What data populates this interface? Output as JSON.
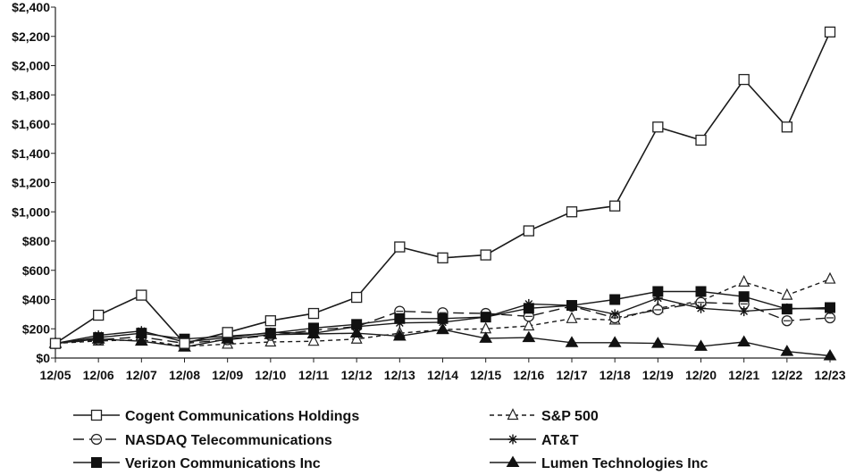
{
  "chart_data": {
    "type": "line",
    "x": [
      "12/05",
      "12/06",
      "12/07",
      "12/08",
      "12/09",
      "12/10",
      "12/11",
      "12/12",
      "12/13",
      "12/14",
      "12/15",
      "12/16",
      "12/17",
      "12/18",
      "12/19",
      "12/20",
      "12/21",
      "12/22",
      "12/23"
    ],
    "y_ticks": [
      "$0",
      "$200",
      "$400",
      "$600",
      "$800",
      "$1,000",
      "$1,200",
      "$1,400",
      "$1,600",
      "$1,800",
      "$2,000",
      "$2,200",
      "$2,400"
    ],
    "ylim": [
      0,
      2400
    ],
    "grid": false,
    "legend_position": "bottom",
    "series": [
      {
        "name": "Cogent Communications Holdings",
        "marker": "open-square",
        "line": "solid",
        "values": [
          100,
          293,
          430,
          100,
          175,
          255,
          305,
          415,
          760,
          685,
          705,
          870,
          1000,
          1040,
          1580,
          1490,
          1905,
          1580,
          2230
        ]
      },
      {
        "name": "S&P 500",
        "marker": "open-triangle",
        "line": "dashed",
        "values": [
          100,
          117,
          125,
          80,
          95,
          110,
          115,
          130,
          170,
          195,
          200,
          220,
          270,
          260,
          340,
          390,
          520,
          430,
          540
        ]
      },
      {
        "name": "NASDAQ Telecommunications",
        "marker": "open-circle",
        "line": "long-dash",
        "values": [
          100,
          125,
          145,
          100,
          125,
          155,
          190,
          215,
          320,
          310,
          305,
          285,
          355,
          275,
          330,
          380,
          370,
          255,
          275
        ]
      },
      {
        "name": "AT&T",
        "marker": "star",
        "line": "solid",
        "values": [
          100,
          155,
          185,
          110,
          140,
          175,
          170,
          215,
          240,
          245,
          280,
          370,
          360,
          300,
          410,
          340,
          320,
          340,
          335
        ]
      },
      {
        "name": "Verizon Communications Inc",
        "marker": "filled-square",
        "line": "solid",
        "values": [
          100,
          140,
          170,
          130,
          150,
          170,
          205,
          230,
          270,
          270,
          280,
          340,
          360,
          400,
          455,
          455,
          420,
          335,
          345
        ]
      },
      {
        "name": "Lumen Technologies Inc",
        "marker": "filled-triangle",
        "line": "solid",
        "values": [
          100,
          130,
          115,
          75,
          130,
          160,
          165,
          170,
          150,
          195,
          135,
          140,
          105,
          105,
          100,
          80,
          110,
          45,
          15
        ]
      }
    ]
  }
}
